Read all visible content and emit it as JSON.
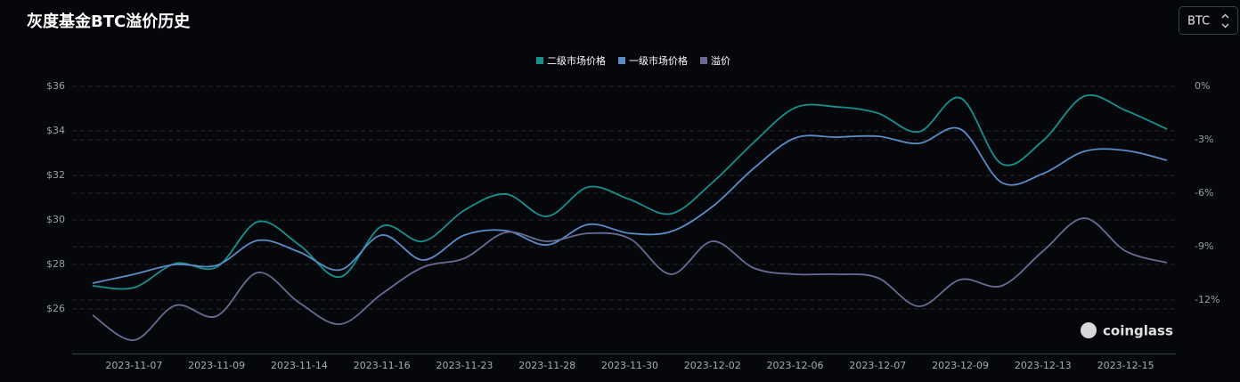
{
  "chart_data": {
    "type": "line",
    "title": "灰度基金BTC溢价历史",
    "selector": "BTC",
    "watermark": "coinglass",
    "categories": [
      null,
      "2023-11-07",
      null,
      "2023-11-09",
      null,
      "2023-11-14",
      null,
      "2023-11-16",
      null,
      "2023-11-23",
      null,
      "2023-11-28",
      null,
      "2023-11-30",
      null,
      "2023-12-02",
      null,
      "2023-12-06",
      null,
      "2023-12-07",
      null,
      "2023-12-09",
      null,
      "2023-12-13",
      null,
      "2023-12-15",
      null
    ],
    "series": [
      {
        "name": "二级市场价格",
        "color": "#16918e",
        "values": [
          27.04,
          26.96,
          28.04,
          27.88,
          29.92,
          28.88,
          27.44,
          29.72,
          29.04,
          30.44,
          31.16,
          30.16,
          31.48,
          30.92,
          30.28,
          31.68,
          33.48,
          35.04,
          35.08,
          34.8,
          33.96,
          35.48,
          32.52,
          33.56,
          35.56,
          34.92,
          34.08
        ]
      },
      {
        "name": "一级市场价格",
        "color": "#5a8cc6",
        "values": [
          27.16,
          27.56,
          28.0,
          27.96,
          29.08,
          28.56,
          27.76,
          29.32,
          28.2,
          29.32,
          29.52,
          28.88,
          29.8,
          29.4,
          29.48,
          30.6,
          32.32,
          33.68,
          33.72,
          33.76,
          33.44,
          34.08,
          31.68,
          32.08,
          33.08,
          33.12,
          32.68
        ]
      },
      {
        "name": "溢价",
        "color": "#686c93",
        "axis": "y2",
        "values": [
          -12.85,
          -14.25,
          -12.3,
          -12.9,
          -10.45,
          -12.15,
          -13.35,
          -11.65,
          -10.15,
          -9.65,
          -8.2,
          -8.7,
          -8.25,
          -8.55,
          -10.55,
          -8.7,
          -10.2,
          -10.55,
          -10.55,
          -10.75,
          -12.35,
          -10.85,
          -11.2,
          -9.25,
          -7.4,
          -9.25,
          -9.9
        ]
      }
    ],
    "ylim": [
      24,
      36
    ],
    "yticks": [
      {
        "value": 26,
        "label": "$26"
      },
      {
        "value": 28,
        "label": "$28"
      },
      {
        "value": 30,
        "label": "$30"
      },
      {
        "value": 32,
        "label": "$32"
      },
      {
        "value": 34,
        "label": "$34"
      },
      {
        "value": 36,
        "label": "$36"
      }
    ],
    "y2lim": [
      -15,
      0
    ],
    "y2ticks": [
      {
        "value": -12,
        "label": "-12%"
      },
      {
        "value": -9,
        "label": "-9%"
      },
      {
        "value": -6,
        "label": "-6%"
      },
      {
        "value": -3,
        "label": "-3%"
      },
      {
        "value": 0,
        "label": "0%"
      }
    ],
    "grid": true
  }
}
